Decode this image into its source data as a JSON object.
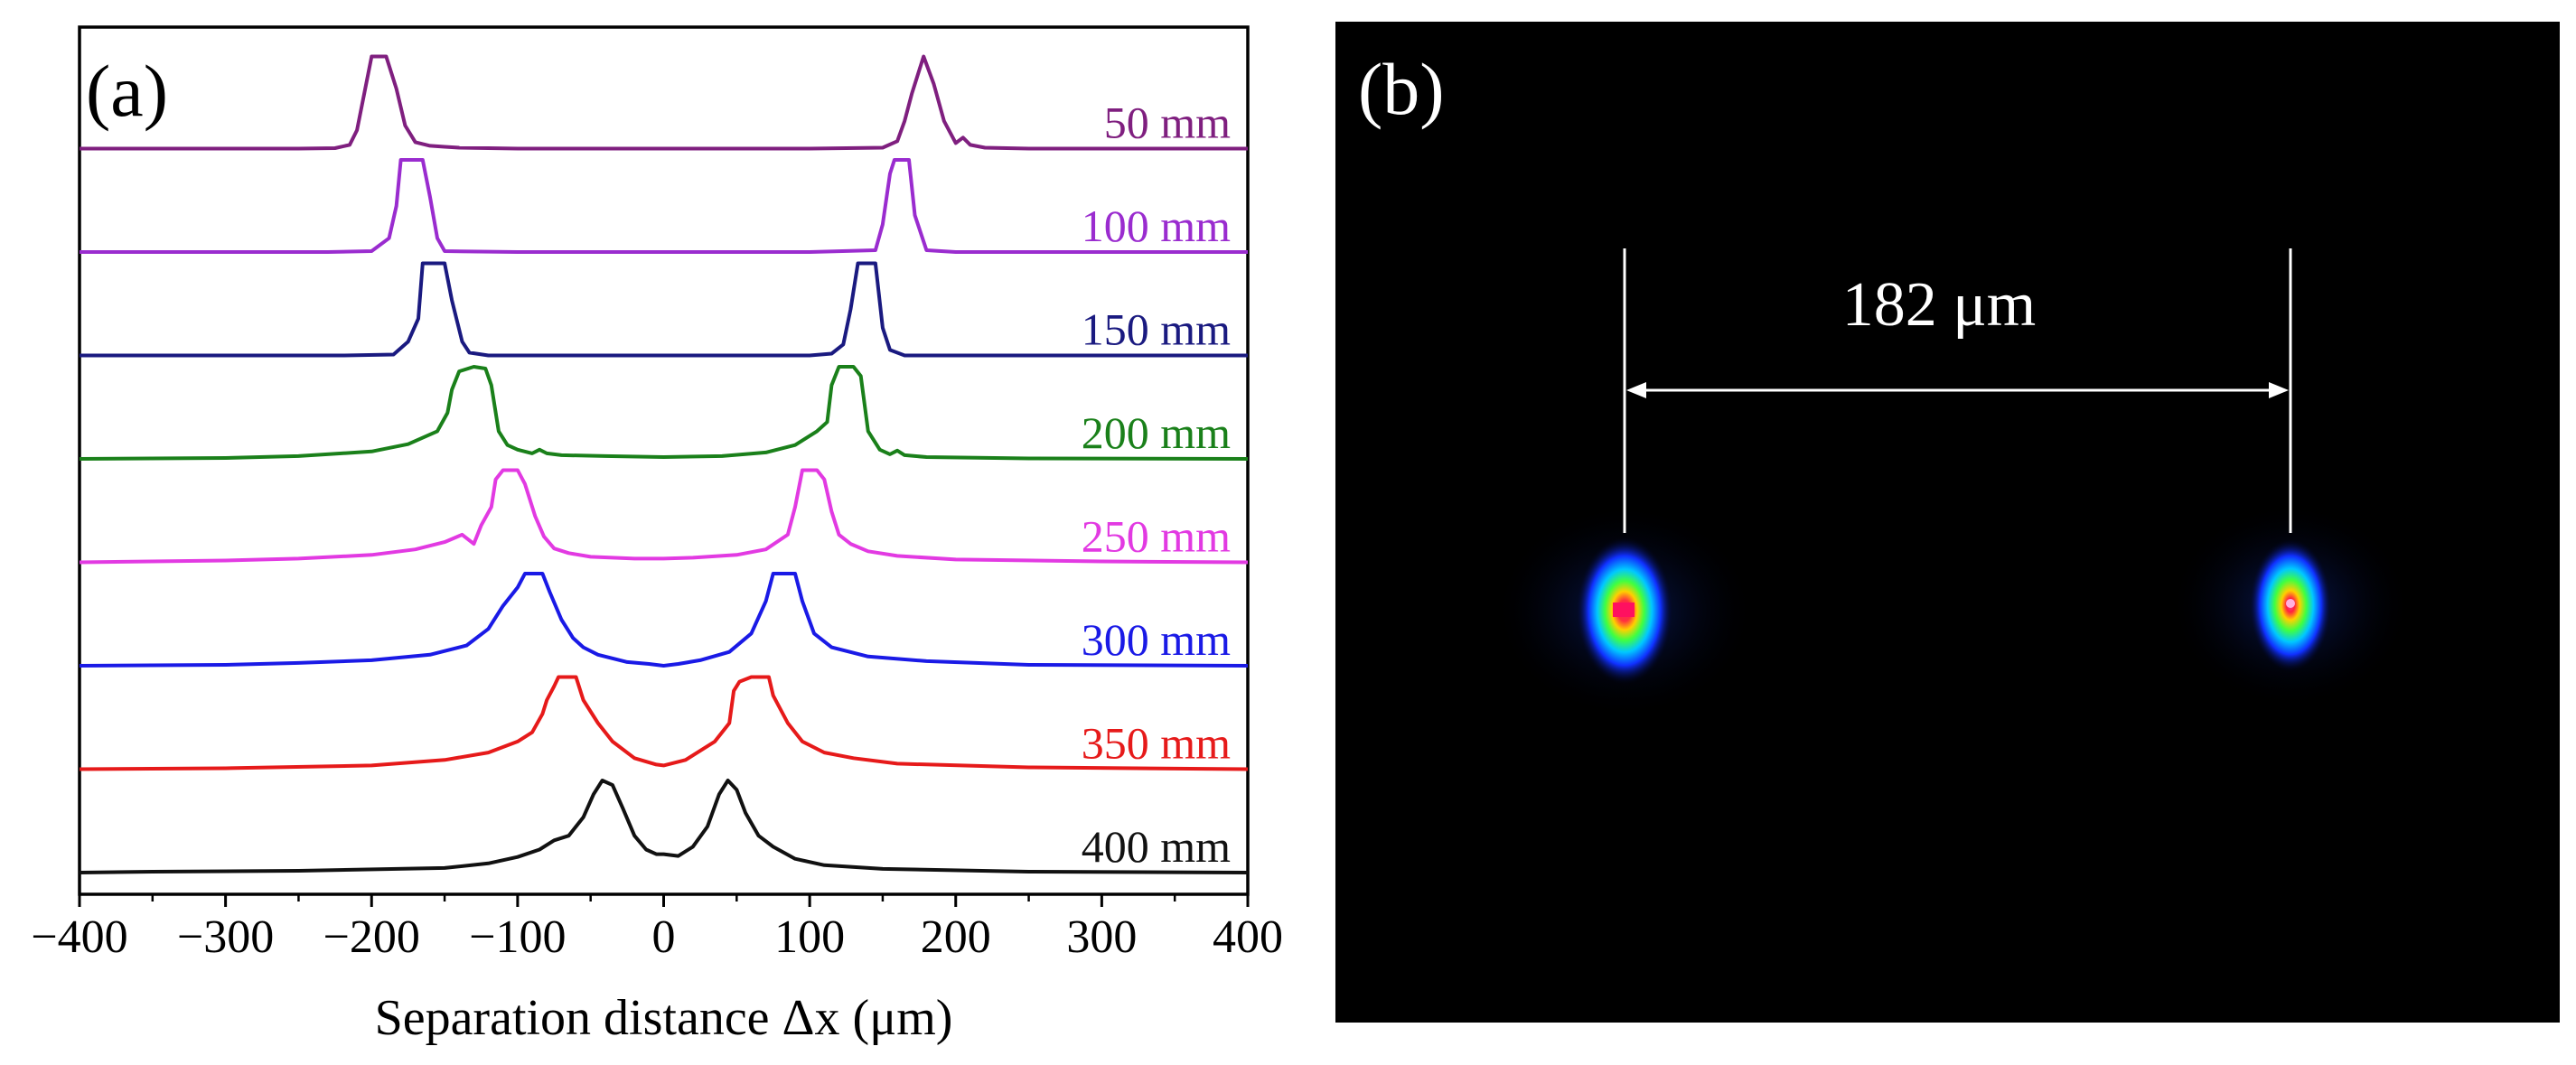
{
  "panels": {
    "a_label": "(a)",
    "b_label": "(b)"
  },
  "colors": {
    "background": "#ffffff",
    "axes": "#000000",
    "image_background": "#000000",
    "annotation": "#ffffff"
  },
  "chart_data": [
    {
      "type": "line",
      "panel_label": "(a)",
      "title": "",
      "xlabel": "Separation distance Δx (μm)",
      "ylabel": "",
      "xlim": [
        -400,
        400
      ],
      "x_ticks": [
        -400,
        -300,
        -200,
        -100,
        0,
        100,
        200,
        300,
        400
      ],
      "x_tick_labels": [
        "−400",
        "−300",
        "−200",
        "−100",
        "0",
        "100",
        "200",
        "300",
        "400"
      ],
      "x_minor_step": 50,
      "y_ticks_shown": false,
      "grid": false,
      "series": [
        {
          "name": "50 mm",
          "color": "#7f1f7f",
          "baseline_offset": 7,
          "points": [
            [
              -400,
              0
            ],
            [
              -250,
              0
            ],
            [
              -225,
              0.005
            ],
            [
              -215,
              0.04
            ],
            [
              -210,
              0.2
            ],
            [
              -205,
              0.6
            ],
            [
              -200,
              1
            ],
            [
              -190,
              1
            ],
            [
              -183,
              0.65
            ],
            [
              -177,
              0.25
            ],
            [
              -170,
              0.07
            ],
            [
              -160,
              0.03
            ],
            [
              -150,
              0.02
            ],
            [
              -140,
              0.01
            ],
            [
              -100,
              0
            ],
            [
              100,
              0
            ],
            [
              150,
              0.01
            ],
            [
              160,
              0.08
            ],
            [
              165,
              0.3
            ],
            [
              170,
              0.6
            ],
            [
              178,
              1
            ],
            [
              185,
              0.7
            ],
            [
              192,
              0.3
            ],
            [
              200,
              0.06
            ],
            [
              205,
              0.12
            ],
            [
              210,
              0.04
            ],
            [
              220,
              0.01
            ],
            [
              250,
              0
            ],
            [
              400,
              0
            ]
          ]
        },
        {
          "name": "100 mm",
          "color": "#9a2ccf",
          "baseline_offset": 6,
          "points": [
            [
              -400,
              0
            ],
            [
              -230,
              0
            ],
            [
              -200,
              0.01
            ],
            [
              -188,
              0.15
            ],
            [
              -183,
              0.5
            ],
            [
              -180,
              1
            ],
            [
              -165,
              1
            ],
            [
              -160,
              0.6
            ],
            [
              -155,
              0.15
            ],
            [
              -150,
              0.01
            ],
            [
              -100,
              0
            ],
            [
              100,
              0
            ],
            [
              145,
              0.02
            ],
            [
              150,
              0.3
            ],
            [
              155,
              0.85
            ],
            [
              158,
              1
            ],
            [
              168,
              1
            ],
            [
              172,
              0.4
            ],
            [
              180,
              0.02
            ],
            [
              200,
              0
            ],
            [
              400,
              0
            ]
          ]
        },
        {
          "name": "150 mm",
          "color": "#1a1a80",
          "baseline_offset": 5,
          "points": [
            [
              -400,
              0
            ],
            [
              -220,
              0
            ],
            [
              -185,
              0.01
            ],
            [
              -175,
              0.15
            ],
            [
              -168,
              0.4
            ],
            [
              -165,
              1
            ],
            [
              -150,
              1
            ],
            [
              -145,
              0.6
            ],
            [
              -138,
              0.15
            ],
            [
              -133,
              0.03
            ],
            [
              -120,
              0
            ],
            [
              100,
              0
            ],
            [
              115,
              0.02
            ],
            [
              123,
              0.12
            ],
            [
              128,
              0.5
            ],
            [
              133,
              1
            ],
            [
              145,
              1
            ],
            [
              150,
              0.3
            ],
            [
              155,
              0.06
            ],
            [
              165,
              0
            ],
            [
              400,
              0
            ]
          ]
        },
        {
          "name": "200 mm",
          "color": "#1a801a",
          "baseline_offset": 4,
          "points": [
            [
              -400,
              0
            ],
            [
              -300,
              0.01
            ],
            [
              -250,
              0.03
            ],
            [
              -200,
              0.08
            ],
            [
              -175,
              0.16
            ],
            [
              -155,
              0.3
            ],
            [
              -148,
              0.5
            ],
            [
              -145,
              0.75
            ],
            [
              -140,
              0.95
            ],
            [
              -130,
              1
            ],
            [
              -122,
              0.98
            ],
            [
              -118,
              0.8
            ],
            [
              -113,
              0.3
            ],
            [
              -107,
              0.15
            ],
            [
              -100,
              0.1
            ],
            [
              -90,
              0.06
            ],
            [
              -85,
              0.1
            ],
            [
              -80,
              0.06
            ],
            [
              -70,
              0.04
            ],
            [
              -40,
              0.03
            ],
            [
              0,
              0.02
            ],
            [
              40,
              0.03
            ],
            [
              70,
              0.07
            ],
            [
              90,
              0.15
            ],
            [
              105,
              0.3
            ],
            [
              112,
              0.4
            ],
            [
              115,
              0.8
            ],
            [
              120,
              1
            ],
            [
              130,
              1
            ],
            [
              135,
              0.9
            ],
            [
              140,
              0.3
            ],
            [
              148,
              0.1
            ],
            [
              155,
              0.05
            ],
            [
              160,
              0.09
            ],
            [
              165,
              0.04
            ],
            [
              180,
              0.02
            ],
            [
              250,
              0.005
            ],
            [
              400,
              0
            ]
          ]
        },
        {
          "name": "250 mm",
          "color": "#e23ae2",
          "baseline_offset": 3,
          "points": [
            [
              -400,
              0
            ],
            [
              -300,
              0.02
            ],
            [
              -250,
              0.04
            ],
            [
              -200,
              0.08
            ],
            [
              -170,
              0.14
            ],
            [
              -150,
              0.22
            ],
            [
              -138,
              0.3
            ],
            [
              -130,
              0.2
            ],
            [
              -125,
              0.4
            ],
            [
              -118,
              0.6
            ],
            [
              -115,
              0.9
            ],
            [
              -110,
              1
            ],
            [
              -100,
              1
            ],
            [
              -95,
              0.85
            ],
            [
              -88,
              0.5
            ],
            [
              -82,
              0.28
            ],
            [
              -75,
              0.15
            ],
            [
              -65,
              0.1
            ],
            [
              -50,
              0.06
            ],
            [
              -20,
              0.04
            ],
            [
              0,
              0.04
            ],
            [
              20,
              0.05
            ],
            [
              50,
              0.08
            ],
            [
              70,
              0.14
            ],
            [
              85,
              0.3
            ],
            [
              90,
              0.6
            ],
            [
              95,
              1
            ],
            [
              105,
              1
            ],
            [
              110,
              0.9
            ],
            [
              115,
              0.55
            ],
            [
              120,
              0.3
            ],
            [
              128,
              0.2
            ],
            [
              140,
              0.12
            ],
            [
              160,
              0.07
            ],
            [
              200,
              0.03
            ],
            [
              300,
              0.01
            ],
            [
              400,
              0
            ]
          ]
        },
        {
          "name": "300 mm",
          "color": "#1a1ae6",
          "baseline_offset": 2,
          "points": [
            [
              -400,
              0
            ],
            [
              -300,
              0.01
            ],
            [
              -250,
              0.03
            ],
            [
              -200,
              0.06
            ],
            [
              -160,
              0.12
            ],
            [
              -135,
              0.22
            ],
            [
              -120,
              0.4
            ],
            [
              -110,
              0.65
            ],
            [
              -100,
              0.85
            ],
            [
              -95,
              1
            ],
            [
              -83,
              1
            ],
            [
              -78,
              0.8
            ],
            [
              -70,
              0.5
            ],
            [
              -62,
              0.3
            ],
            [
              -55,
              0.2
            ],
            [
              -45,
              0.12
            ],
            [
              -25,
              0.04
            ],
            [
              -10,
              0.02
            ],
            [
              0,
              0
            ],
            [
              10,
              0.02
            ],
            [
              25,
              0.06
            ],
            [
              45,
              0.15
            ],
            [
              60,
              0.35
            ],
            [
              70,
              0.7
            ],
            [
              75,
              1
            ],
            [
              90,
              1
            ],
            [
              95,
              0.7
            ],
            [
              103,
              0.35
            ],
            [
              115,
              0.2
            ],
            [
              140,
              0.1
            ],
            [
              180,
              0.05
            ],
            [
              250,
              0.01
            ],
            [
              400,
              0
            ]
          ]
        },
        {
          "name": "350 mm",
          "color": "#e61a1a",
          "baseline_offset": 1,
          "points": [
            [
              -400,
              0
            ],
            [
              -300,
              0.01
            ],
            [
              -200,
              0.04
            ],
            [
              -150,
              0.1
            ],
            [
              -120,
              0.18
            ],
            [
              -100,
              0.3
            ],
            [
              -90,
              0.4
            ],
            [
              -83,
              0.6
            ],
            [
              -80,
              0.75
            ],
            [
              -75,
              0.9
            ],
            [
              -72,
              1
            ],
            [
              -60,
              1
            ],
            [
              -55,
              0.75
            ],
            [
              -45,
              0.5
            ],
            [
              -35,
              0.3
            ],
            [
              -20,
              0.12
            ],
            [
              -5,
              0.05
            ],
            [
              0,
              0.04
            ],
            [
              15,
              0.1
            ],
            [
              35,
              0.3
            ],
            [
              45,
              0.5
            ],
            [
              48,
              0.85
            ],
            [
              52,
              0.95
            ],
            [
              60,
              1
            ],
            [
              72,
              1
            ],
            [
              75,
              0.8
            ],
            [
              85,
              0.5
            ],
            [
              95,
              0.3
            ],
            [
              110,
              0.18
            ],
            [
              130,
              0.12
            ],
            [
              160,
              0.06
            ],
            [
              250,
              0.02
            ],
            [
              400,
              0
            ]
          ]
        },
        {
          "name": "400 mm",
          "color": "#111111",
          "baseline_offset": 0,
          "points": [
            [
              -400,
              0
            ],
            [
              -350,
              0.01
            ],
            [
              -250,
              0.02
            ],
            [
              -150,
              0.05
            ],
            [
              -120,
              0.1
            ],
            [
              -100,
              0.17
            ],
            [
              -85,
              0.25
            ],
            [
              -75,
              0.35
            ],
            [
              -65,
              0.4
            ],
            [
              -55,
              0.6
            ],
            [
              -48,
              0.85
            ],
            [
              -42,
              1
            ],
            [
              -35,
              0.95
            ],
            [
              -28,
              0.7
            ],
            [
              -20,
              0.4
            ],
            [
              -12,
              0.25
            ],
            [
              -5,
              0.2
            ],
            [
              0,
              0.2
            ],
            [
              10,
              0.18
            ],
            [
              20,
              0.28
            ],
            [
              30,
              0.5
            ],
            [
              38,
              0.85
            ],
            [
              44,
              1
            ],
            [
              50,
              0.9
            ],
            [
              56,
              0.65
            ],
            [
              65,
              0.4
            ],
            [
              75,
              0.28
            ],
            [
              90,
              0.15
            ],
            [
              110,
              0.08
            ],
            [
              150,
              0.04
            ],
            [
              250,
              0.01
            ],
            [
              400,
              0
            ]
          ]
        }
      ]
    },
    {
      "type": "heatmap",
      "panel_label": "(b)",
      "title": "",
      "annotation": "182 μm",
      "spots": [
        {
          "name": "left-spot",
          "relative_x": 0.0
        },
        {
          "name": "right-spot",
          "relative_x": 1.0
        }
      ]
    }
  ]
}
